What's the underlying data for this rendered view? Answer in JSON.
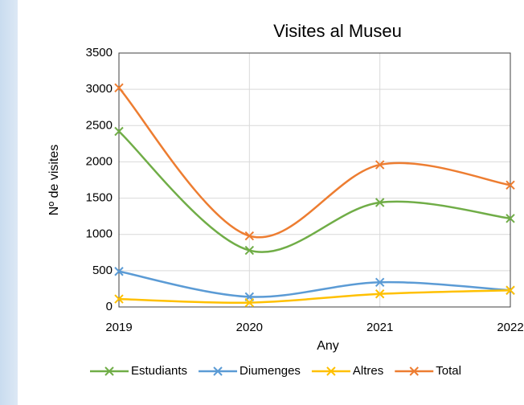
{
  "chart_data": {
    "type": "line",
    "title": "Visites al Museu",
    "x_label": "Any",
    "y_label": "Nº de visites",
    "x": [
      2019,
      2020,
      2021,
      2022
    ],
    "xlim": [
      2019,
      2022
    ],
    "xticks": [
      2019,
      2020,
      2021,
      2022
    ],
    "ylim": [
      0,
      3500
    ],
    "yticks": [
      0,
      500,
      1000,
      1500,
      2000,
      2500,
      3000,
      3500
    ],
    "grid": true,
    "smooth": true,
    "legend": "bottom",
    "series": [
      {
        "name": "Estudiants",
        "color": "#70ad47",
        "values": [
          2420,
          780,
          1440,
          1220
        ]
      },
      {
        "name": "Diumenges",
        "color": "#5b9bd5",
        "values": [
          490,
          140,
          340,
          230
        ]
      },
      {
        "name": "Altres",
        "color": "#ffc000",
        "values": [
          110,
          60,
          180,
          230
        ]
      },
      {
        "name": "Total",
        "color": "#ed7d31",
        "values": [
          3020,
          980,
          1960,
          1680
        ]
      }
    ]
  }
}
